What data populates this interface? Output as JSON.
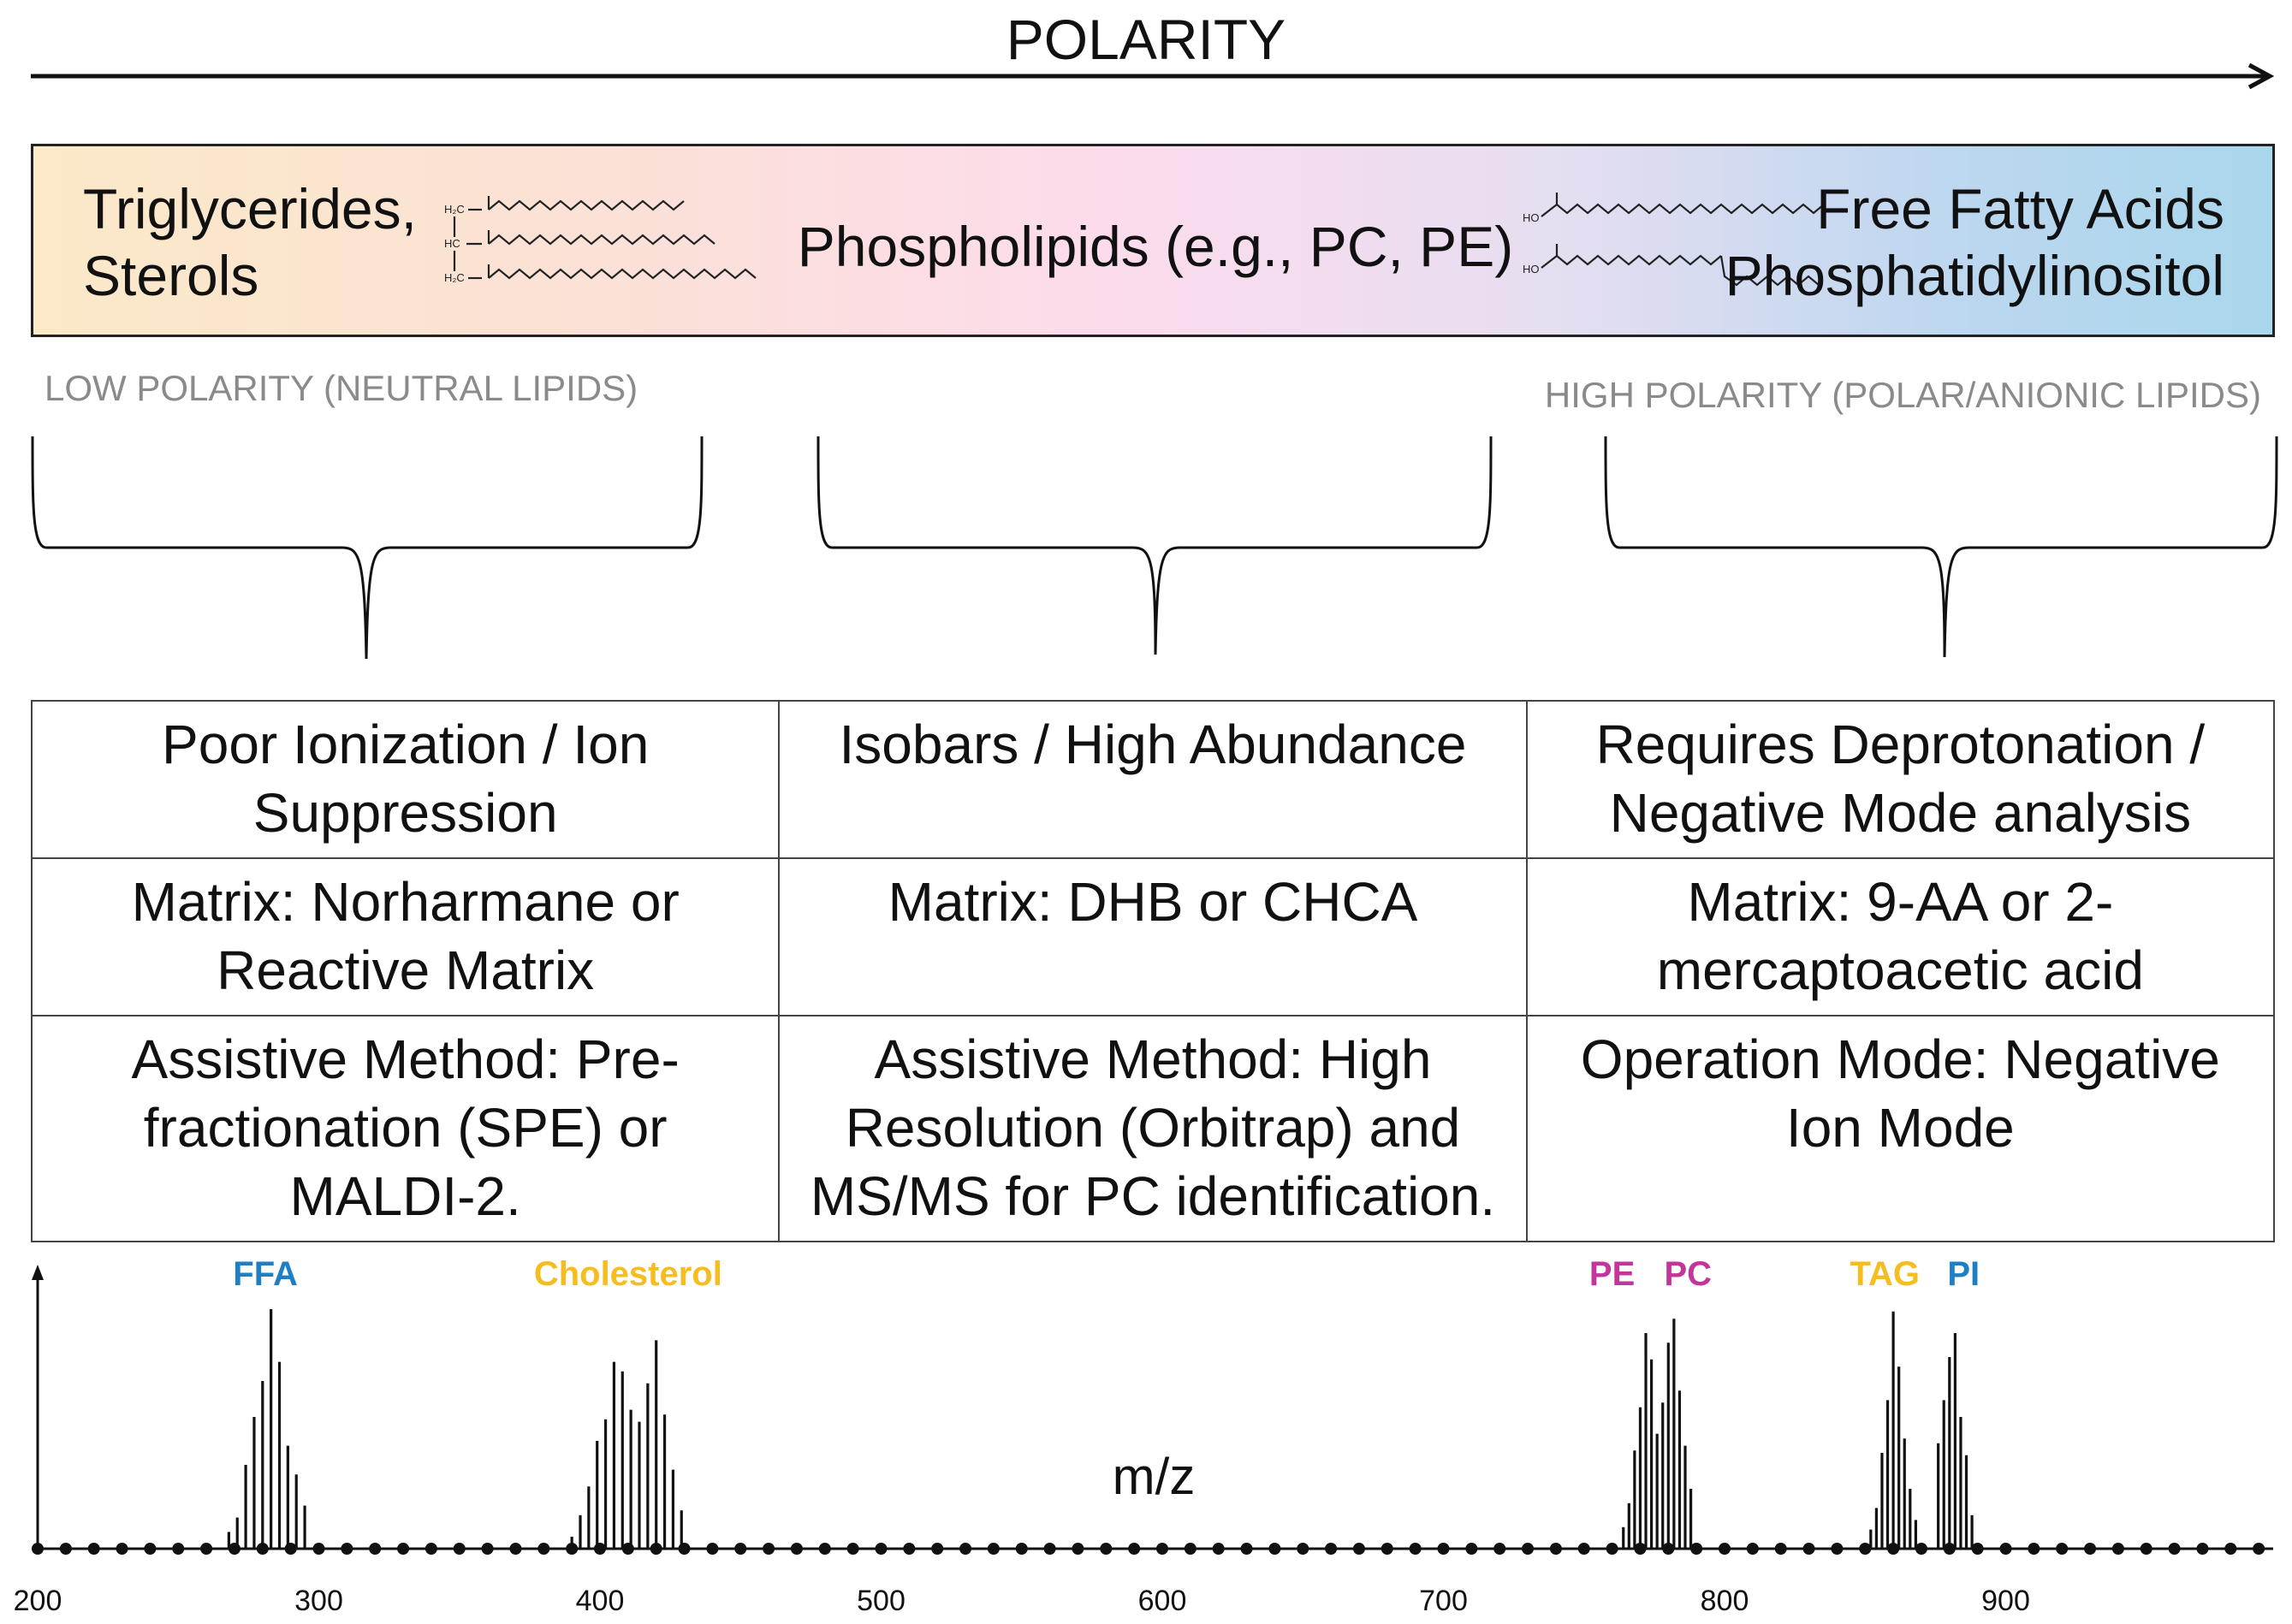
{
  "title": "POLARITY",
  "band": {
    "left_lines": [
      "Triglycerides,",
      "Sterols"
    ],
    "middle": "Phospholipids (e.g., PC, PE)",
    "right_lines": [
      "Free Fatty Acids",
      "Phosphatidylinositol"
    ]
  },
  "polarity_labels": {
    "low": "LOW POLARITY (NEUTRAL LIPIDS)",
    "high": "HIGH POLARITY (POLAR/ANIONIC LIPIDS)"
  },
  "table": {
    "rows": [
      [
        "Poor Ionization / Ion Suppression",
        "Isobars / High Abundance",
        "Requires Deprotonation / Negative Mode analysis"
      ],
      [
        "Matrix: Norharmane or Reactive Matrix",
        "Matrix: DHB or CHCA",
        "Matrix: 9-AA or 2-mercaptoacetic acid"
      ],
      [
        "Assistive Method: Pre-fractionation (SPE) or MALDI-2.",
        "Assistive Method: High Resolution (Orbitrap) and MS/MS for PC identification.",
        "Operation Mode: Negative Ion Mode"
      ]
    ]
  },
  "colors": {
    "blue": "#1f7fc4",
    "yellow": "#f5bd1f",
    "magenta": "#c4359b"
  },
  "chart_data": {
    "type": "bar",
    "title": "",
    "xlabel": "m/z",
    "ylabel": "",
    "xlim": [
      200,
      990
    ],
    "ylim": [
      0,
      1
    ],
    "x_ticks": [
      200,
      300,
      400,
      500,
      600,
      700,
      800,
      900
    ],
    "annotations": [
      {
        "label": "FFA",
        "x": 281,
        "color": "#1f7fc4"
      },
      {
        "label": "Cholesterol",
        "x": 410,
        "color": "#f5bd1f"
      },
      {
        "label": "PE",
        "x": 760,
        "color": "#c4359b"
      },
      {
        "label": "PC",
        "x": 787,
        "color": "#c4359b"
      },
      {
        "label": "TAG",
        "x": 857,
        "color": "#f5bd1f"
      },
      {
        "label": "PI",
        "x": 885,
        "color": "#1f7fc4"
      }
    ],
    "series": [
      {
        "name": "FFA",
        "x": [
          268,
          271,
          274,
          277,
          280,
          283,
          286,
          289,
          292,
          295
        ],
        "values": [
          0.07,
          0.13,
          0.35,
          0.55,
          0.7,
          1.0,
          0.78,
          0.43,
          0.31,
          0.18
        ]
      },
      {
        "name": "Cholesterol",
        "x": [
          390,
          393,
          396,
          399,
          402,
          405,
          408,
          411,
          414,
          417,
          420,
          423,
          426,
          429
        ],
        "values": [
          0.05,
          0.14,
          0.26,
          0.45,
          0.54,
          0.78,
          0.74,
          0.58,
          0.53,
          0.69,
          0.87,
          0.56,
          0.33,
          0.16
        ]
      },
      {
        "name": "PE/PC",
        "x": [
          764,
          766,
          768,
          770,
          772,
          774,
          776,
          778,
          780,
          782,
          784,
          786,
          788
        ],
        "values": [
          0.09,
          0.19,
          0.41,
          0.59,
          0.9,
          0.79,
          0.48,
          0.61,
          0.86,
          0.96,
          0.66,
          0.43,
          0.25
        ]
      },
      {
        "name": "TAG/PI",
        "x": [
          852,
          854,
          856,
          858,
          860,
          862,
          864,
          866,
          868,
          876,
          878,
          880,
          882,
          884,
          886,
          888
        ],
        "values": [
          0.08,
          0.17,
          0.4,
          0.62,
          0.99,
          0.76,
          0.46,
          0.25,
          0.12,
          0.44,
          0.62,
          0.8,
          0.9,
          0.55,
          0.39,
          0.14
        ]
      }
    ]
  }
}
